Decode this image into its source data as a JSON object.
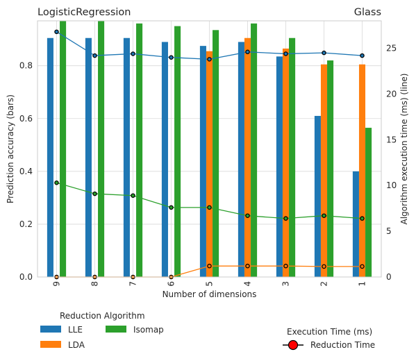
{
  "titles": {
    "left": "LogisticRegression",
    "right": "Glass"
  },
  "chart_data": {
    "type": "bar",
    "xlabel": "Number of dimensions",
    "ylabel": "Prediction accuracy (bars)",
    "y2label": "Algorithm execution time (ms) (line)",
    "categories": [
      "9",
      "8",
      "7",
      "6",
      "5",
      "4",
      "3",
      "2",
      "1"
    ],
    "ylim": [
      0,
      0.97
    ],
    "y2lim": [
      0,
      28
    ],
    "yticks": [
      "0.0",
      "0.2",
      "0.4",
      "0.6",
      "0.8"
    ],
    "y2ticks": [
      "0",
      "5",
      "10",
      "15",
      "20",
      "25"
    ],
    "grid": true,
    "series": [
      {
        "name": "LLE",
        "color": "#1f77b4",
        "values": [
          0.905,
          0.905,
          0.905,
          0.89,
          0.875,
          0.89,
          0.835,
          0.61,
          0.4
        ]
      },
      {
        "name": "LDA",
        "color": "#ff7f0e",
        "values": [
          0,
          0,
          0,
          0,
          0.855,
          0.905,
          0.865,
          0.805,
          0.805
        ]
      },
      {
        "name": "Isomap",
        "color": "#2ca02c",
        "values": [
          0.97,
          0.97,
          0.96,
          0.95,
          0.935,
          0.96,
          0.905,
          0.82,
          0.565
        ]
      }
    ],
    "lines": [
      {
        "name": "LLE",
        "color": "#1f77b4",
        "values": [
          26.8,
          24.2,
          24.4,
          24.0,
          23.8,
          24.6,
          24.4,
          24.5,
          24.2
        ]
      },
      {
        "name": "LDA",
        "color": "#ff7f0e",
        "values": [
          0,
          0,
          0,
          0,
          1.2,
          1.2,
          1.2,
          1.15,
          1.15
        ]
      },
      {
        "name": "Isomap",
        "color": "#2ca02c",
        "values": [
          10.3,
          9.1,
          8.9,
          7.6,
          7.6,
          6.7,
          6.4,
          6.7,
          6.4
        ]
      }
    ]
  },
  "legend": {
    "bars_title": "Reduction Algorithm",
    "bars": [
      {
        "label": "LLE",
        "color": "#1f77b4"
      },
      {
        "label": "LDA",
        "color": "#ff7f0e"
      },
      {
        "label": "Isomap",
        "color": "#2ca02c"
      }
    ],
    "line_title": "Execution Time (ms)",
    "line_label": "Reduction Time",
    "line_marker_color": "#ff0000"
  }
}
